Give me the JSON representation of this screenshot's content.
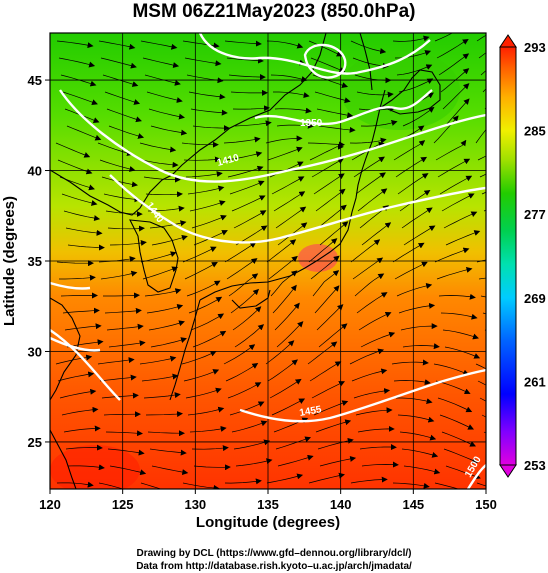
{
  "title": "MSM 06Z21May2023 (850.0hPa)",
  "map": {
    "type": "temperature-and-streamline-map",
    "lon_range": [
      120,
      150
    ],
    "lat_range": [
      22.4,
      47.6
    ],
    "x_ticks": [
      "120",
      "125",
      "130",
      "135",
      "140",
      "145",
      "150"
    ],
    "y_ticks": [
      "25",
      "30",
      "35",
      "40",
      "45"
    ],
    "xlabel": "Longitude (degrees)",
    "ylabel": "Latitude  (degrees)",
    "grid": true,
    "contour_labels": [
      "1350",
      "1410",
      "1440",
      "1455",
      "1500"
    ]
  },
  "colorbar": {
    "ticks": [
      "293",
      "285",
      "277",
      "269",
      "261",
      "253"
    ],
    "min": 253,
    "max": 293,
    "colors": [
      "#e000e0",
      "#8000ff",
      "#0000ff",
      "#0066ff",
      "#00ccff",
      "#00e0b0",
      "#00d050",
      "#22cc00",
      "#a0e000",
      "#f0f000",
      "#ffb000",
      "#ff6000",
      "#ff2000"
    ]
  },
  "credits": {
    "line1": "Drawing by DCL (https://www.gfd–dennou.org/library/dcl/)",
    "line2": "Data from http://database.rish.kyoto–u.ac.jp/arch/jmadata/"
  }
}
